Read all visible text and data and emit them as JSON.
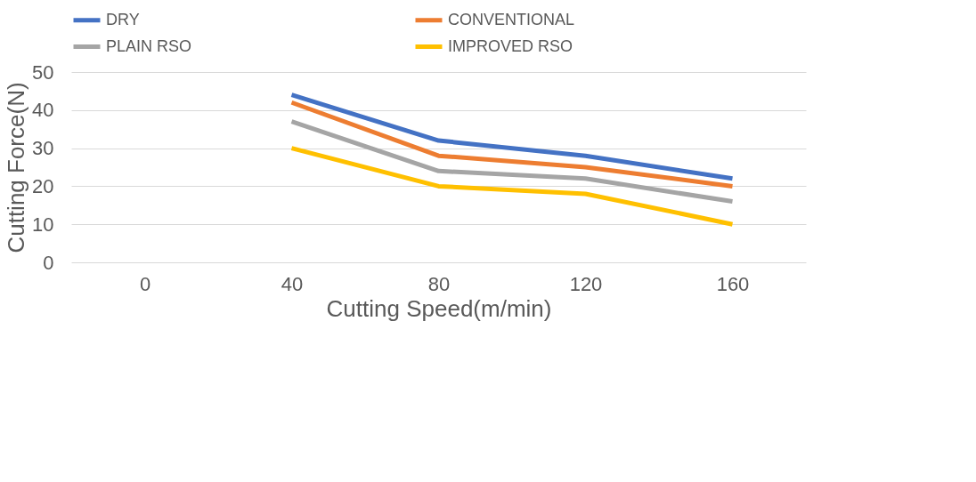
{
  "chart_data": {
    "type": "line",
    "xlabel": "Cutting Speed(m/min)",
    "ylabel": "Cutting Force(N)",
    "categories": [
      "0",
      "40",
      "80",
      "120",
      "160"
    ],
    "series": [
      {
        "name": "DRY",
        "color": "#4472c4",
        "values": [
          null,
          44,
          32,
          28,
          22
        ]
      },
      {
        "name": "CONVENTIONAL",
        "color": "#ed7d31",
        "values": [
          null,
          42,
          28,
          25,
          20
        ]
      },
      {
        "name": "PLAIN RSO",
        "color": "#a5a5a5",
        "values": [
          null,
          37,
          24,
          22,
          16
        ]
      },
      {
        "name": "IMPROVED RSO",
        "color": "#ffc000",
        "values": [
          null,
          30,
          20,
          18,
          10
        ]
      }
    ],
    "ylim": [
      0,
      50
    ],
    "yticks": [
      0,
      10,
      20,
      30,
      40,
      50
    ],
    "grid": "y",
    "legend": "top",
    "marker": "none",
    "line_style": "solid"
  }
}
